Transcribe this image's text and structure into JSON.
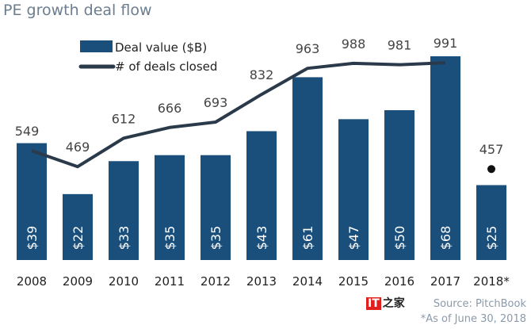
{
  "chart_data": {
    "type": "bar",
    "title": "PE growth deal flow",
    "categories": [
      "2008",
      "2009",
      "2010",
      "2011",
      "2012",
      "2013",
      "2014",
      "2015",
      "2016",
      "2017",
      "2018*"
    ],
    "series": [
      {
        "name": "Deal value ($B)",
        "type": "bar",
        "color": "#1a4f7c",
        "values": [
          39,
          22,
          33,
          35,
          35,
          43,
          61,
          47,
          50,
          68,
          25
        ],
        "labels": [
          "$39",
          "$22",
          "$33",
          "$35",
          "$35",
          "$43",
          "$61",
          "$47",
          "$50",
          "$68",
          "$25"
        ]
      },
      {
        "name": "# of deals closed",
        "type": "line",
        "color": "#2b3a4a",
        "values": [
          549,
          469,
          612,
          666,
          693,
          832,
          963,
          988,
          981,
          991,
          457
        ],
        "labels": [
          "549",
          "469",
          "612",
          "666",
          "693",
          "832",
          "963",
          "988",
          "981",
          "991",
          "457"
        ],
        "last_point_marker_only": true
      }
    ],
    "legend_placement": "top-left",
    "grid": false
  },
  "notes": {
    "source": "Source: PitchBook",
    "footnote": "*As of June 30, 2018"
  },
  "watermark": "IT之家"
}
